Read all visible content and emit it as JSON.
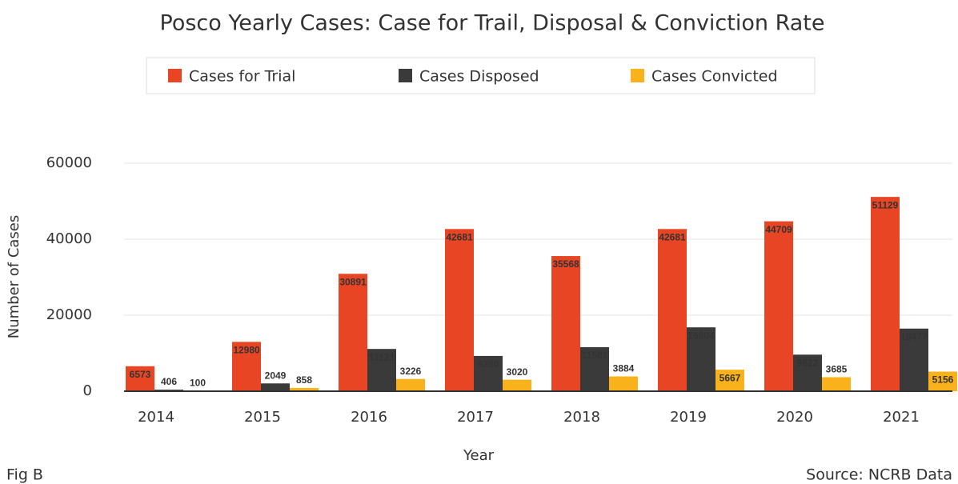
{
  "chart_data": {
    "type": "bar",
    "title": "Posco Yearly Cases: Case for Trail, Disposal & Conviction Rate",
    "x_label": "Year",
    "y_label": "Number of Cases",
    "categories": [
      "2014",
      "2015",
      "2016",
      "2017",
      "2018",
      "2019",
      "2020",
      "2021"
    ],
    "series": [
      {
        "name": "Cases for Trial",
        "color": "#e84524",
        "values": [
          6573,
          12980,
          30891,
          42681,
          35568,
          42681,
          44709,
          51129
        ]
      },
      {
        "name": "Cases Disposed",
        "color": "#3a3a3a",
        "values": [
          406,
          2049,
          11121,
          9280,
          11581,
          16804,
          9622,
          16477
        ]
      },
      {
        "name": "Cases Convicted",
        "color": "#f9b21b",
        "values": [
          100,
          858,
          3226,
          3020,
          3884,
          5667,
          3685,
          5156
        ]
      }
    ],
    "ylim": [
      0,
      60000
    ],
    "yticks": [
      0,
      20000,
      40000,
      60000
    ],
    "grid": true,
    "fig_label": "Fig B",
    "source": "Source: NCRB Data"
  }
}
